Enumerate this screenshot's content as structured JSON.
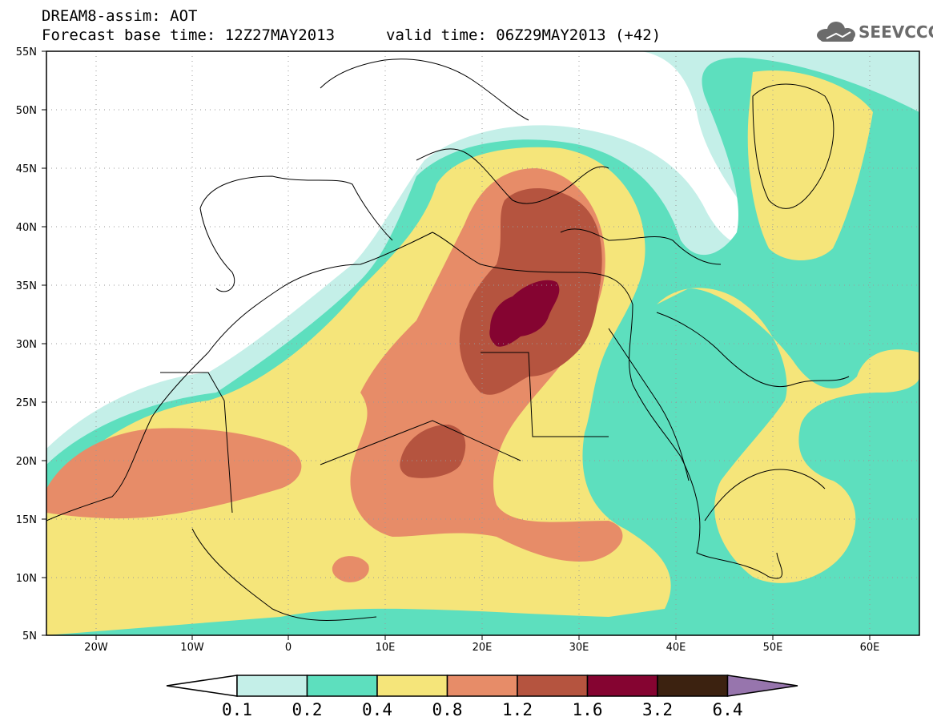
{
  "header": {
    "line1": "DREAM8-assim: AOT",
    "line2": "Forecast base time: 12Z27MAY2013",
    "valid": "valid time: 06Z29MAY2013 (+42)"
  },
  "logo": {
    "text": "SEEVCCC",
    "icon": "cloud-icon",
    "color": "#6b6b6b"
  },
  "map": {
    "extent": {
      "lon_min": -25,
      "lon_max": 65,
      "lat_min": 5,
      "lat_max": 55
    },
    "lat_ticks": [
      "55N",
      "50N",
      "45N",
      "40N",
      "35N",
      "30N",
      "25N",
      "20N",
      "15N",
      "10N",
      "5N"
    ],
    "lon_ticks": [
      "20W",
      "10W",
      "0",
      "10E",
      "20E",
      "30E",
      "40E",
      "50E",
      "60E"
    ],
    "gridlines": "dotted"
  },
  "colorbar": {
    "labels": [
      "0.1",
      "0.2",
      "0.4",
      "0.8",
      "1.2",
      "1.6",
      "3.2",
      "6.4"
    ],
    "colors": [
      "#c4efe8",
      "#5ddfbe",
      "#f5e57a",
      "#e78c68",
      "#b5543f",
      "#850431",
      "#3c2210",
      "#9775ad"
    ],
    "below_color": "#ffffff"
  },
  "legend_colors": {
    "c01": "#c4efe8",
    "c02": "#5ddfbe",
    "c04": "#f5e57a",
    "c08": "#e78c68",
    "c12": "#b5543f",
    "c16": "#850431"
  }
}
